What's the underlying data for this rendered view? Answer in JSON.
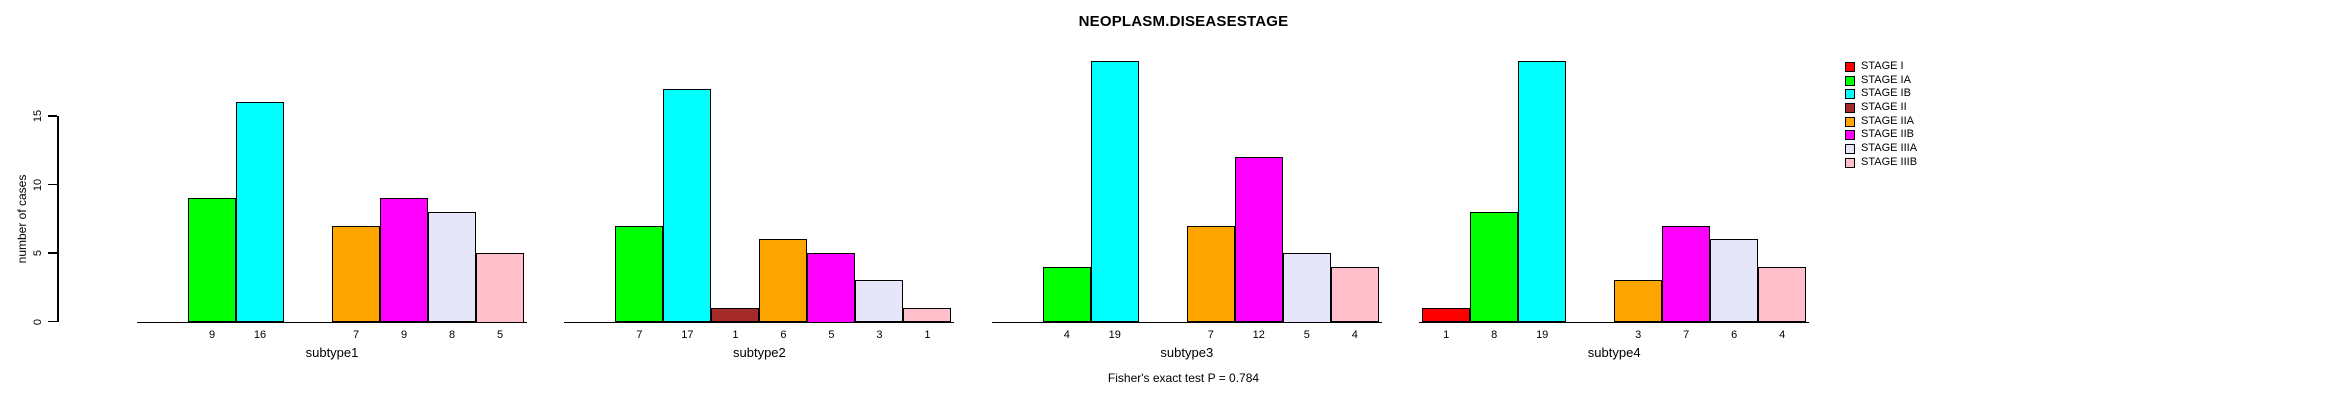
{
  "title": "NEOPLASM.DISEASESTAGE",
  "footer": "Fisher's exact test P = 0.784",
  "chart_data": {
    "type": "bar",
    "title": "NEOPLASM.DISEASESTAGE",
    "xlabel": "",
    "ylabel": "number of cases",
    "ylim": [
      0,
      19
    ],
    "yticks": [
      0,
      5,
      10,
      15
    ],
    "grid": false,
    "legend_position": "right-outside",
    "bar_value_labels_shown": true,
    "categories": [
      "subtype1",
      "subtype2",
      "subtype3",
      "subtype4"
    ],
    "series": [
      {
        "name": "STAGE I",
        "color": "#FF0000",
        "values": [
          0,
          0,
          0,
          1
        ]
      },
      {
        "name": "STAGE IA",
        "color": "#00FF00",
        "values": [
          9,
          7,
          4,
          8
        ]
      },
      {
        "name": "STAGE IB",
        "color": "#00FFFF",
        "values": [
          16,
          17,
          19,
          19
        ]
      },
      {
        "name": "STAGE II",
        "color": "#A52A2A",
        "values": [
          0,
          1,
          0,
          0
        ]
      },
      {
        "name": "STAGE IIA",
        "color": "#FFA500",
        "values": [
          7,
          6,
          7,
          3
        ]
      },
      {
        "name": "STAGE IIB",
        "color": "#FF00FF",
        "values": [
          9,
          5,
          12,
          7
        ]
      },
      {
        "name": "STAGE IIIA",
        "color": "#E6E6FA",
        "values": [
          8,
          3,
          5,
          6
        ]
      },
      {
        "name": "STAGE IIIB",
        "color": "#FFC0CB",
        "values": [
          5,
          1,
          4,
          4
        ]
      }
    ],
    "annotation": "Fisher's exact test P = 0.784"
  }
}
